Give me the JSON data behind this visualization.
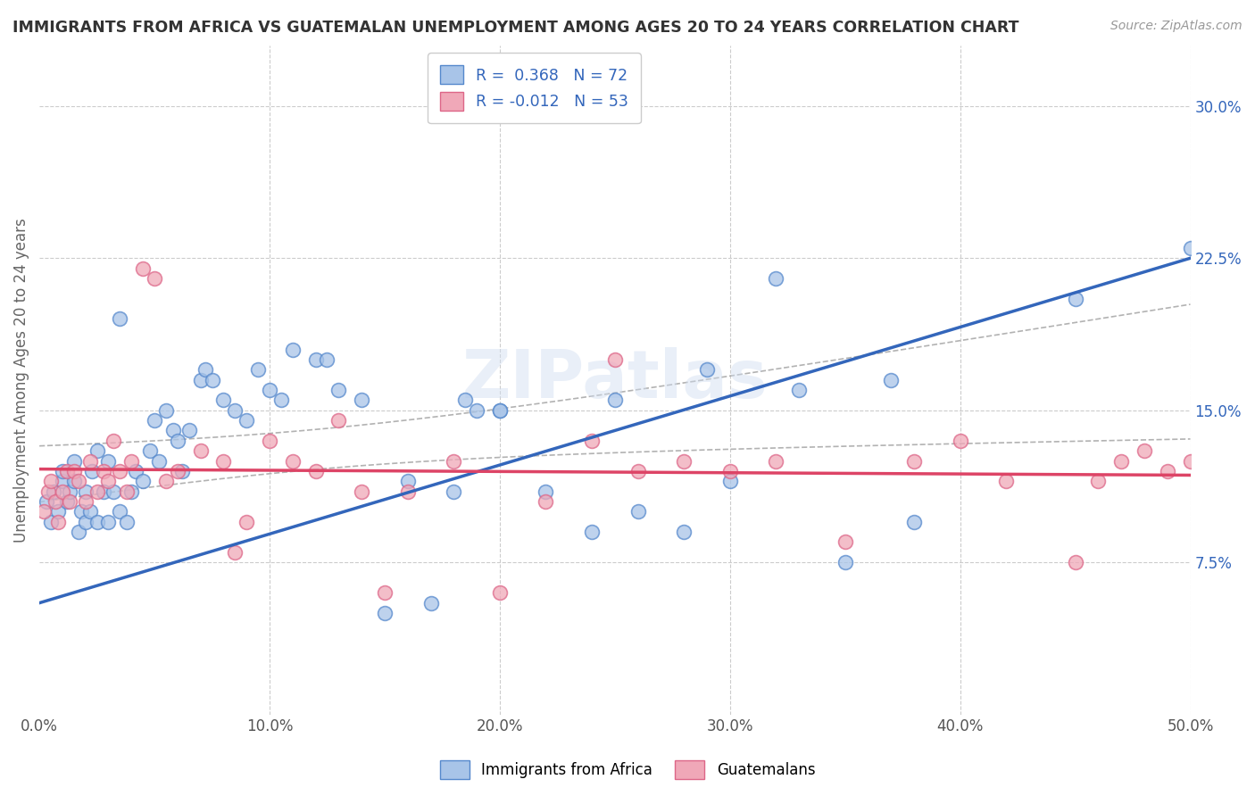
{
  "title": "IMMIGRANTS FROM AFRICA VS GUATEMALAN UNEMPLOYMENT AMONG AGES 20 TO 24 YEARS CORRELATION CHART",
  "source": "Source: ZipAtlas.com",
  "ylabel": "Unemployment Among Ages 20 to 24 years",
  "x_tick_labels": [
    "0.0%",
    "10.0%",
    "20.0%",
    "30.0%",
    "40.0%",
    "50.0%"
  ],
  "x_tick_values": [
    0.0,
    10.0,
    20.0,
    30.0,
    40.0,
    50.0
  ],
  "y_tick_labels": [
    "7.5%",
    "15.0%",
    "22.5%",
    "30.0%"
  ],
  "y_tick_values": [
    7.5,
    15.0,
    22.5,
    30.0
  ],
  "xlim": [
    0,
    50
  ],
  "ylim": [
    0,
    33
  ],
  "legend_label_1": "Immigrants from Africa",
  "legend_label_2": "Guatemalans",
  "R1": "0.368",
  "N1": "72",
  "R2": "-0.012",
  "N2": "53",
  "color_blue": "#a8c4e8",
  "color_blue_edge": "#5588cc",
  "color_blue_line": "#3366bb",
  "color_pink": "#f0a8b8",
  "color_pink_edge": "#dd6688",
  "color_pink_line": "#dd4466",
  "color_dashed": "#aaaaaa",
  "background_color": "#ffffff",
  "grid_color": "#cccccc",
  "title_color": "#333333",
  "watermark": "ZIPatlas",
  "blue_points_x": [
    0.3,
    0.5,
    0.6,
    0.8,
    1.0,
    1.0,
    1.2,
    1.3,
    1.5,
    1.5,
    1.7,
    1.8,
    2.0,
    2.0,
    2.2,
    2.3,
    2.5,
    2.5,
    2.8,
    3.0,
    3.0,
    3.2,
    3.5,
    3.5,
    3.8,
    4.0,
    4.2,
    4.5,
    4.8,
    5.0,
    5.2,
    5.5,
    5.8,
    6.0,
    6.2,
    6.5,
    7.0,
    7.2,
    7.5,
    8.0,
    8.5,
    9.0,
    9.5,
    10.0,
    10.5,
    11.0,
    12.0,
    12.5,
    13.0,
    14.0,
    15.0,
    16.0,
    17.0,
    18.0,
    18.5,
    19.0,
    20.0,
    20.0,
    22.0,
    24.0,
    25.0,
    26.0,
    28.0,
    29.0,
    30.0,
    32.0,
    33.0,
    35.0,
    37.0,
    38.0,
    45.0,
    50.0
  ],
  "blue_points_y": [
    10.5,
    9.5,
    11.0,
    10.0,
    11.5,
    12.0,
    10.5,
    11.0,
    11.5,
    12.5,
    9.0,
    10.0,
    9.5,
    11.0,
    10.0,
    12.0,
    9.5,
    13.0,
    11.0,
    9.5,
    12.5,
    11.0,
    10.0,
    19.5,
    9.5,
    11.0,
    12.0,
    11.5,
    13.0,
    14.5,
    12.5,
    15.0,
    14.0,
    13.5,
    12.0,
    14.0,
    16.5,
    17.0,
    16.5,
    15.5,
    15.0,
    14.5,
    17.0,
    16.0,
    15.5,
    18.0,
    17.5,
    17.5,
    16.0,
    15.5,
    5.0,
    11.5,
    5.5,
    11.0,
    15.5,
    15.0,
    15.0,
    15.0,
    11.0,
    9.0,
    15.5,
    10.0,
    9.0,
    17.0,
    11.5,
    21.5,
    16.0,
    7.5,
    16.5,
    9.5,
    20.5,
    23.0
  ],
  "pink_points_x": [
    0.2,
    0.4,
    0.5,
    0.7,
    0.8,
    1.0,
    1.2,
    1.3,
    1.5,
    1.7,
    2.0,
    2.2,
    2.5,
    2.8,
    3.0,
    3.2,
    3.5,
    3.8,
    4.0,
    4.5,
    5.0,
    5.5,
    6.0,
    7.0,
    8.0,
    9.0,
    10.0,
    11.0,
    12.0,
    13.0,
    14.0,
    15.0,
    16.0,
    18.0,
    20.0,
    22.0,
    24.0,
    25.0,
    26.0,
    28.0,
    30.0,
    32.0,
    35.0,
    38.0,
    40.0,
    42.0,
    45.0,
    46.0,
    47.0,
    48.0,
    49.0,
    50.0,
    8.5
  ],
  "pink_points_y": [
    10.0,
    11.0,
    11.5,
    10.5,
    9.5,
    11.0,
    12.0,
    10.5,
    12.0,
    11.5,
    10.5,
    12.5,
    11.0,
    12.0,
    11.5,
    13.5,
    12.0,
    11.0,
    12.5,
    22.0,
    21.5,
    11.5,
    12.0,
    13.0,
    12.5,
    9.5,
    13.5,
    12.5,
    12.0,
    14.5,
    11.0,
    6.0,
    11.0,
    12.5,
    6.0,
    10.5,
    13.5,
    17.5,
    12.0,
    12.5,
    12.0,
    12.5,
    8.5,
    12.5,
    13.5,
    11.5,
    7.5,
    11.5,
    12.5,
    13.0,
    12.0,
    12.5,
    8.0
  ],
  "blue_line_x0": 0,
  "blue_line_y0": 5.5,
  "blue_line_x1": 50,
  "blue_line_y1": 22.5,
  "pink_line_x0": 0,
  "pink_line_y0": 12.1,
  "pink_line_x1": 50,
  "pink_line_y1": 11.8
}
